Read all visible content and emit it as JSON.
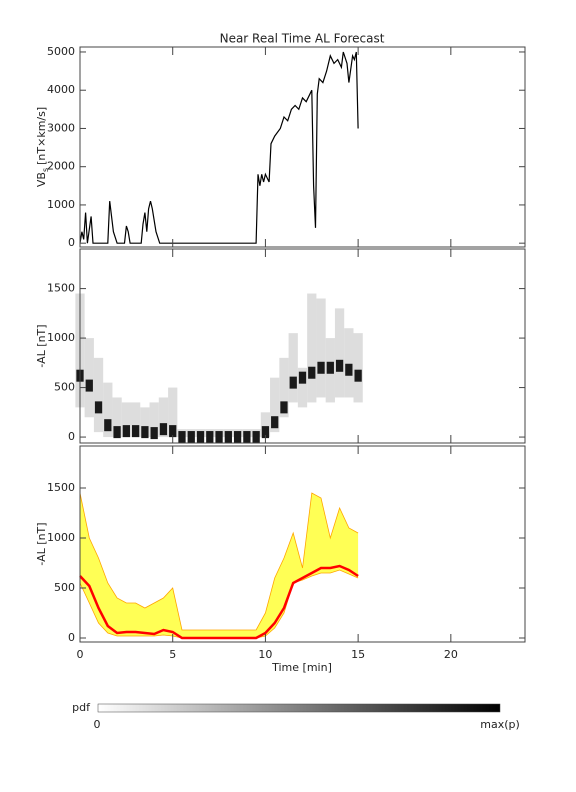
{
  "chart_data": [
    {
      "type": "line",
      "title": "Near Real Time AL Forecast",
      "ylabel": {
        "main": "VB",
        "sub": "s",
        "unit": "[nT×km/s]"
      },
      "xlim": [
        0,
        24
      ],
      "xticks": [
        0,
        5,
        10,
        15,
        20
      ],
      "ylim": [
        -100,
        5130
      ],
      "yticks": [
        0,
        1000,
        2000,
        3000,
        4000,
        5000
      ],
      "color": "#000000",
      "x": [
        0,
        0.1,
        0.2,
        0.3,
        0.4,
        0.6,
        0.7,
        1.5,
        1.6,
        1.8,
        2.0,
        2.4,
        2.5,
        2.6,
        2.7,
        3.3,
        3.4,
        3.5,
        3.6,
        3.7,
        3.8,
        3.9,
        4.1,
        4.3,
        9.5,
        9.6,
        9.7,
        9.8,
        9.9,
        10.0,
        10.2,
        10.3,
        10.5,
        10.8,
        11.0,
        11.2,
        11.4,
        11.6,
        11.8,
        12.0,
        12.2,
        12.5,
        12.6,
        12.7,
        12.8,
        12.9,
        13.1,
        13.3,
        13.5,
        13.7,
        13.9,
        14.1,
        14.2,
        14.4,
        14.5,
        14.7,
        14.8,
        14.9,
        15.0
      ],
      "values": [
        0,
        300,
        100,
        800,
        0,
        700,
        0,
        0,
        1100,
        300,
        0,
        0,
        450,
        300,
        0,
        0,
        500,
        800,
        300,
        900,
        1100,
        900,
        300,
        0,
        0,
        1800,
        1500,
        1800,
        1600,
        1800,
        1600,
        2600,
        2800,
        3000,
        3300,
        3200,
        3500,
        3600,
        3500,
        3800,
        3700,
        4000,
        1500,
        400,
        3900,
        4300,
        4200,
        4500,
        4900,
        4700,
        4800,
        4600,
        5000,
        4700,
        4200,
        4900,
        4800,
        5000,
        3000
      ]
    },
    {
      "type": "heatmap",
      "ylabel": "-AL [nT]",
      "xlim": [
        0,
        24
      ],
      "xticks": [
        0,
        5,
        10,
        15,
        20
      ],
      "ylim": [
        -60,
        1900
      ],
      "yticks": [
        0,
        500,
        1000,
        1500
      ],
      "x": [
        0,
        0.5,
        1,
        1.5,
        2,
        2.5,
        3,
        3.5,
        4,
        4.5,
        5,
        5.5,
        6,
        6.5,
        7,
        7.5,
        8,
        8.5,
        9,
        9.5,
        10,
        10.5,
        11,
        11.5,
        12,
        12.5,
        13,
        13.5,
        14,
        14.5,
        15
      ],
      "mode": [
        620,
        520,
        300,
        120,
        50,
        60,
        60,
        50,
        40,
        80,
        60,
        0,
        0,
        0,
        0,
        0,
        0,
        0,
        0,
        0,
        50,
        150,
        300,
        550,
        600,
        650,
        700,
        700,
        720,
        680,
        620
      ],
      "lo": [
        300,
        200,
        50,
        0,
        0,
        0,
        0,
        0,
        0,
        0,
        0,
        0,
        0,
        0,
        0,
        0,
        0,
        0,
        0,
        0,
        0,
        50,
        200,
        350,
        300,
        350,
        400,
        350,
        400,
        400,
        350
      ],
      "hi": [
        1450,
        1000,
        800,
        550,
        400,
        350,
        350,
        300,
        350,
        400,
        500,
        80,
        80,
        80,
        80,
        80,
        80,
        80,
        80,
        80,
        250,
        600,
        800,
        1050,
        700,
        1450,
        1400,
        1000,
        1300,
        1100,
        1050
      ]
    },
    {
      "type": "area",
      "ylabel": "-AL [nT]",
      "xlabel": "Time [min]",
      "xlim": [
        0,
        24
      ],
      "xticks": [
        0,
        5,
        10,
        15,
        20
      ],
      "ylim": [
        -40,
        1920
      ],
      "yticks": [
        0,
        500,
        1000,
        1500
      ],
      "median_color": "#ff0000",
      "band_color": "#ffff55",
      "edge_color": "#ffa500",
      "x": [
        0,
        0.5,
        1,
        1.5,
        2,
        2.5,
        3,
        3.5,
        4,
        4.5,
        5,
        5.5,
        6,
        6.5,
        7,
        7.5,
        8,
        8.5,
        9,
        9.5,
        10,
        10.5,
        11,
        11.5,
        12,
        12.5,
        13,
        13.5,
        14,
        14.5,
        15
      ],
      "median": [
        620,
        520,
        300,
        120,
        50,
        60,
        60,
        50,
        40,
        80,
        60,
        0,
        0,
        0,
        0,
        0,
        0,
        0,
        0,
        0,
        50,
        150,
        300,
        550,
        600,
        650,
        700,
        700,
        720,
        680,
        620
      ],
      "lo": [
        550,
        350,
        150,
        50,
        20,
        20,
        20,
        20,
        20,
        30,
        20,
        0,
        0,
        0,
        0,
        0,
        0,
        0,
        0,
        0,
        20,
        100,
        250,
        550,
        580,
        620,
        650,
        650,
        680,
        640,
        600
      ],
      "hi": [
        1450,
        1000,
        800,
        550,
        400,
        350,
        350,
        300,
        350,
        400,
        500,
        80,
        80,
        80,
        80,
        80,
        80,
        80,
        80,
        80,
        250,
        600,
        800,
        1050,
        700,
        1450,
        1400,
        1000,
        1300,
        1100,
        1050
      ]
    }
  ],
  "colorbar": {
    "label": "pdf",
    "min_label": "0",
    "max_label": "max(p)"
  }
}
